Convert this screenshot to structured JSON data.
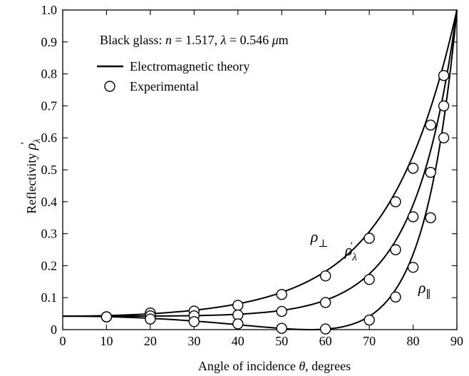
{
  "chart_data": {
    "type": "line",
    "xlabel": "Angle of incidence θ, degrees",
    "ylabel": "Reflectivity ρ′λ",
    "xlim": [
      0,
      90
    ],
    "ylim": [
      0,
      1.0
    ],
    "x_ticks": [
      0,
      10,
      20,
      30,
      40,
      50,
      60,
      70,
      80,
      90
    ],
    "y_ticks": [
      0,
      0.1,
      0.2,
      0.3,
      0.4,
      0.5,
      0.6,
      0.7,
      0.8,
      0.9,
      1.0
    ],
    "x_tick_labels": [
      "0",
      "10",
      "20",
      "30",
      "40",
      "50",
      "60",
      "70",
      "80",
      "90"
    ],
    "y_tick_labels": [
      "0",
      "0.1",
      "0.2",
      "0.3",
      "0.4",
      "0.5",
      "0.6",
      "0.7",
      "0.8",
      "0.9",
      "1.0"
    ],
    "grid": false,
    "refractive_index": 1.517,
    "annotation": {
      "prefix": "Black glass:  ",
      "n_label": "n",
      "n_value": " = 1.517,  ",
      "lambda_label": "λ",
      "lambda_value": " = 0.546 ",
      "unit_mu": "μ",
      "unit_m": "m"
    },
    "legend": {
      "placement": "top-left",
      "items": [
        {
          "label": "Electromagnetic theory",
          "marker": "line"
        },
        {
          "label": "Experimental",
          "marker": "open-circle"
        }
      ]
    },
    "series": [
      {
        "name": "ρ⊥",
        "label_symbol": "ρ",
        "label_sub": "⊥",
        "curve": "perpendicular",
        "experimental": [
          {
            "x": 10,
            "y": 0.04
          },
          {
            "x": 20,
            "y": 0.052
          },
          {
            "x": 30,
            "y": 0.058
          },
          {
            "x": 40,
            "y": 0.076
          },
          {
            "x": 50,
            "y": 0.11
          },
          {
            "x": 60,
            "y": 0.168
          },
          {
            "x": 70,
            "y": 0.286
          },
          {
            "x": 76,
            "y": 0.4
          },
          {
            "x": 80,
            "y": 0.505
          },
          {
            "x": 84,
            "y": 0.64
          },
          {
            "x": 87,
            "y": 0.795
          }
        ]
      },
      {
        "name": "ρ′λ",
        "label_symbol": "ρ",
        "label_sub": "λ",
        "label_sup": "′",
        "curve": "average",
        "experimental": [
          {
            "x": 10,
            "y": 0.04
          },
          {
            "x": 20,
            "y": 0.043
          },
          {
            "x": 30,
            "y": 0.043
          },
          {
            "x": 40,
            "y": 0.046
          },
          {
            "x": 50,
            "y": 0.057
          },
          {
            "x": 60,
            "y": 0.085
          },
          {
            "x": 70,
            "y": 0.157
          },
          {
            "x": 76,
            "y": 0.25
          },
          {
            "x": 80,
            "y": 0.353
          },
          {
            "x": 84,
            "y": 0.492
          },
          {
            "x": 87,
            "y": 0.7
          }
        ]
      },
      {
        "name": "ρ∥",
        "label_symbol": "ρ",
        "label_sub": "∥",
        "curve": "parallel",
        "experimental": [
          {
            "x": 10,
            "y": 0.04
          },
          {
            "x": 20,
            "y": 0.033
          },
          {
            "x": 30,
            "y": 0.025
          },
          {
            "x": 40,
            "y": 0.018
          },
          {
            "x": 50,
            "y": 0.004
          },
          {
            "x": 60,
            "y": 0.002
          },
          {
            "x": 70,
            "y": 0.03
          },
          {
            "x": 76,
            "y": 0.102
          },
          {
            "x": 80,
            "y": 0.195
          },
          {
            "x": 84,
            "y": 0.35
          },
          {
            "x": 87,
            "y": 0.6
          }
        ]
      }
    ]
  }
}
